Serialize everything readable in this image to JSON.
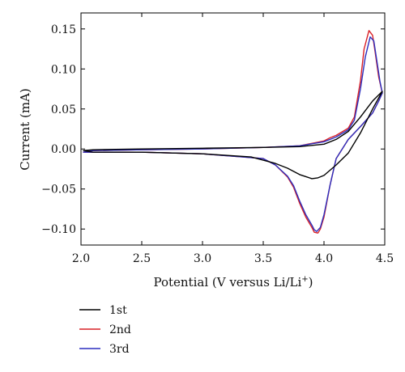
{
  "chart_data": {
    "type": "line",
    "title": "",
    "xlabel_main": "Potential (V versus Li/Li",
    "xlabel_sup": "+",
    "xlabel_end": ")",
    "ylabel": "Current (mA)",
    "xlim": [
      2.0,
      4.5
    ],
    "ylim": [
      -0.12,
      0.17
    ],
    "x_ticks": [
      2.0,
      2.5,
      3.0,
      3.5,
      4.0,
      4.5
    ],
    "x_tick_labels": [
      "2.0",
      "2.5",
      "3.0",
      "3.5",
      "4.0",
      "4.5"
    ],
    "y_ticks": [
      -0.1,
      -0.05,
      0.0,
      0.05,
      0.1,
      0.15
    ],
    "y_tick_labels": [
      "−0.10",
      "−0.05",
      "0.00",
      "0.05",
      "0.10",
      "0.15"
    ],
    "grid": false,
    "legend_position": "bottom-left, below plot",
    "series": [
      {
        "name": "1st",
        "color": "#000000",
        "upper": {
          "x": [
            2.02,
            2.1,
            2.5,
            3.0,
            3.5,
            3.8,
            4.0,
            4.1,
            4.2,
            4.3,
            4.4,
            4.48
          ],
          "y": [
            -0.002,
            -0.001,
            0.0,
            0.001,
            0.002,
            0.003,
            0.006,
            0.012,
            0.022,
            0.04,
            0.06,
            0.072
          ]
        },
        "lower": {
          "x": [
            4.48,
            4.4,
            4.3,
            4.2,
            4.1,
            4.0,
            3.95,
            3.9,
            3.8,
            3.7,
            3.6,
            3.4,
            3.0,
            2.5,
            2.1,
            2.02
          ],
          "y": [
            0.072,
            0.05,
            0.02,
            -0.005,
            -0.02,
            -0.033,
            -0.036,
            -0.037,
            -0.032,
            -0.024,
            -0.018,
            -0.01,
            -0.006,
            -0.004,
            -0.004,
            -0.002
          ]
        }
      },
      {
        "name": "2nd",
        "color": "#d92027",
        "upper": {
          "x": [
            2.02,
            2.1,
            2.5,
            3.0,
            3.5,
            3.8,
            4.0,
            4.05,
            4.1,
            4.2,
            4.25,
            4.3,
            4.33,
            4.37,
            4.4,
            4.42,
            4.45,
            4.48
          ],
          "y": [
            -0.004,
            -0.002,
            -0.001,
            0.0,
            0.002,
            0.004,
            0.01,
            0.014,
            0.017,
            0.026,
            0.04,
            0.085,
            0.125,
            0.148,
            0.142,
            0.122,
            0.09,
            0.07
          ]
        },
        "lower": {
          "x": [
            4.48,
            4.45,
            4.4,
            4.3,
            4.2,
            4.1,
            4.05,
            4.0,
            3.97,
            3.95,
            3.92,
            3.9,
            3.85,
            3.8,
            3.75,
            3.7,
            3.6,
            3.5,
            3.0,
            2.5,
            2.1,
            2.02
          ],
          "y": [
            0.07,
            0.06,
            0.045,
            0.028,
            0.012,
            -0.012,
            -0.045,
            -0.085,
            -0.1,
            -0.105,
            -0.104,
            -0.098,
            -0.085,
            -0.068,
            -0.048,
            -0.035,
            -0.02,
            -0.012,
            -0.006,
            -0.004,
            -0.004,
            -0.004
          ]
        }
      },
      {
        "name": "3rd",
        "color": "#2b2fbf",
        "upper": {
          "x": [
            2.02,
            2.1,
            2.5,
            3.0,
            3.5,
            3.8,
            4.0,
            4.05,
            4.1,
            4.2,
            4.25,
            4.3,
            4.34,
            4.38,
            4.41,
            4.43,
            4.46,
            4.48
          ],
          "y": [
            -0.004,
            -0.002,
            -0.001,
            0.0,
            0.002,
            0.004,
            0.009,
            0.012,
            0.015,
            0.024,
            0.036,
            0.075,
            0.115,
            0.14,
            0.135,
            0.115,
            0.085,
            0.07
          ]
        },
        "lower": {
          "x": [
            4.48,
            4.45,
            4.4,
            4.3,
            4.2,
            4.1,
            4.05,
            4.0,
            3.97,
            3.94,
            3.92,
            3.9,
            3.85,
            3.8,
            3.75,
            3.7,
            3.6,
            3.5,
            3.0,
            2.5,
            2.1,
            2.02
          ],
          "y": [
            0.07,
            0.06,
            0.045,
            0.028,
            0.012,
            -0.012,
            -0.045,
            -0.082,
            -0.098,
            -0.103,
            -0.101,
            -0.095,
            -0.082,
            -0.065,
            -0.046,
            -0.034,
            -0.02,
            -0.012,
            -0.006,
            -0.004,
            -0.004,
            -0.004
          ]
        }
      }
    ]
  }
}
